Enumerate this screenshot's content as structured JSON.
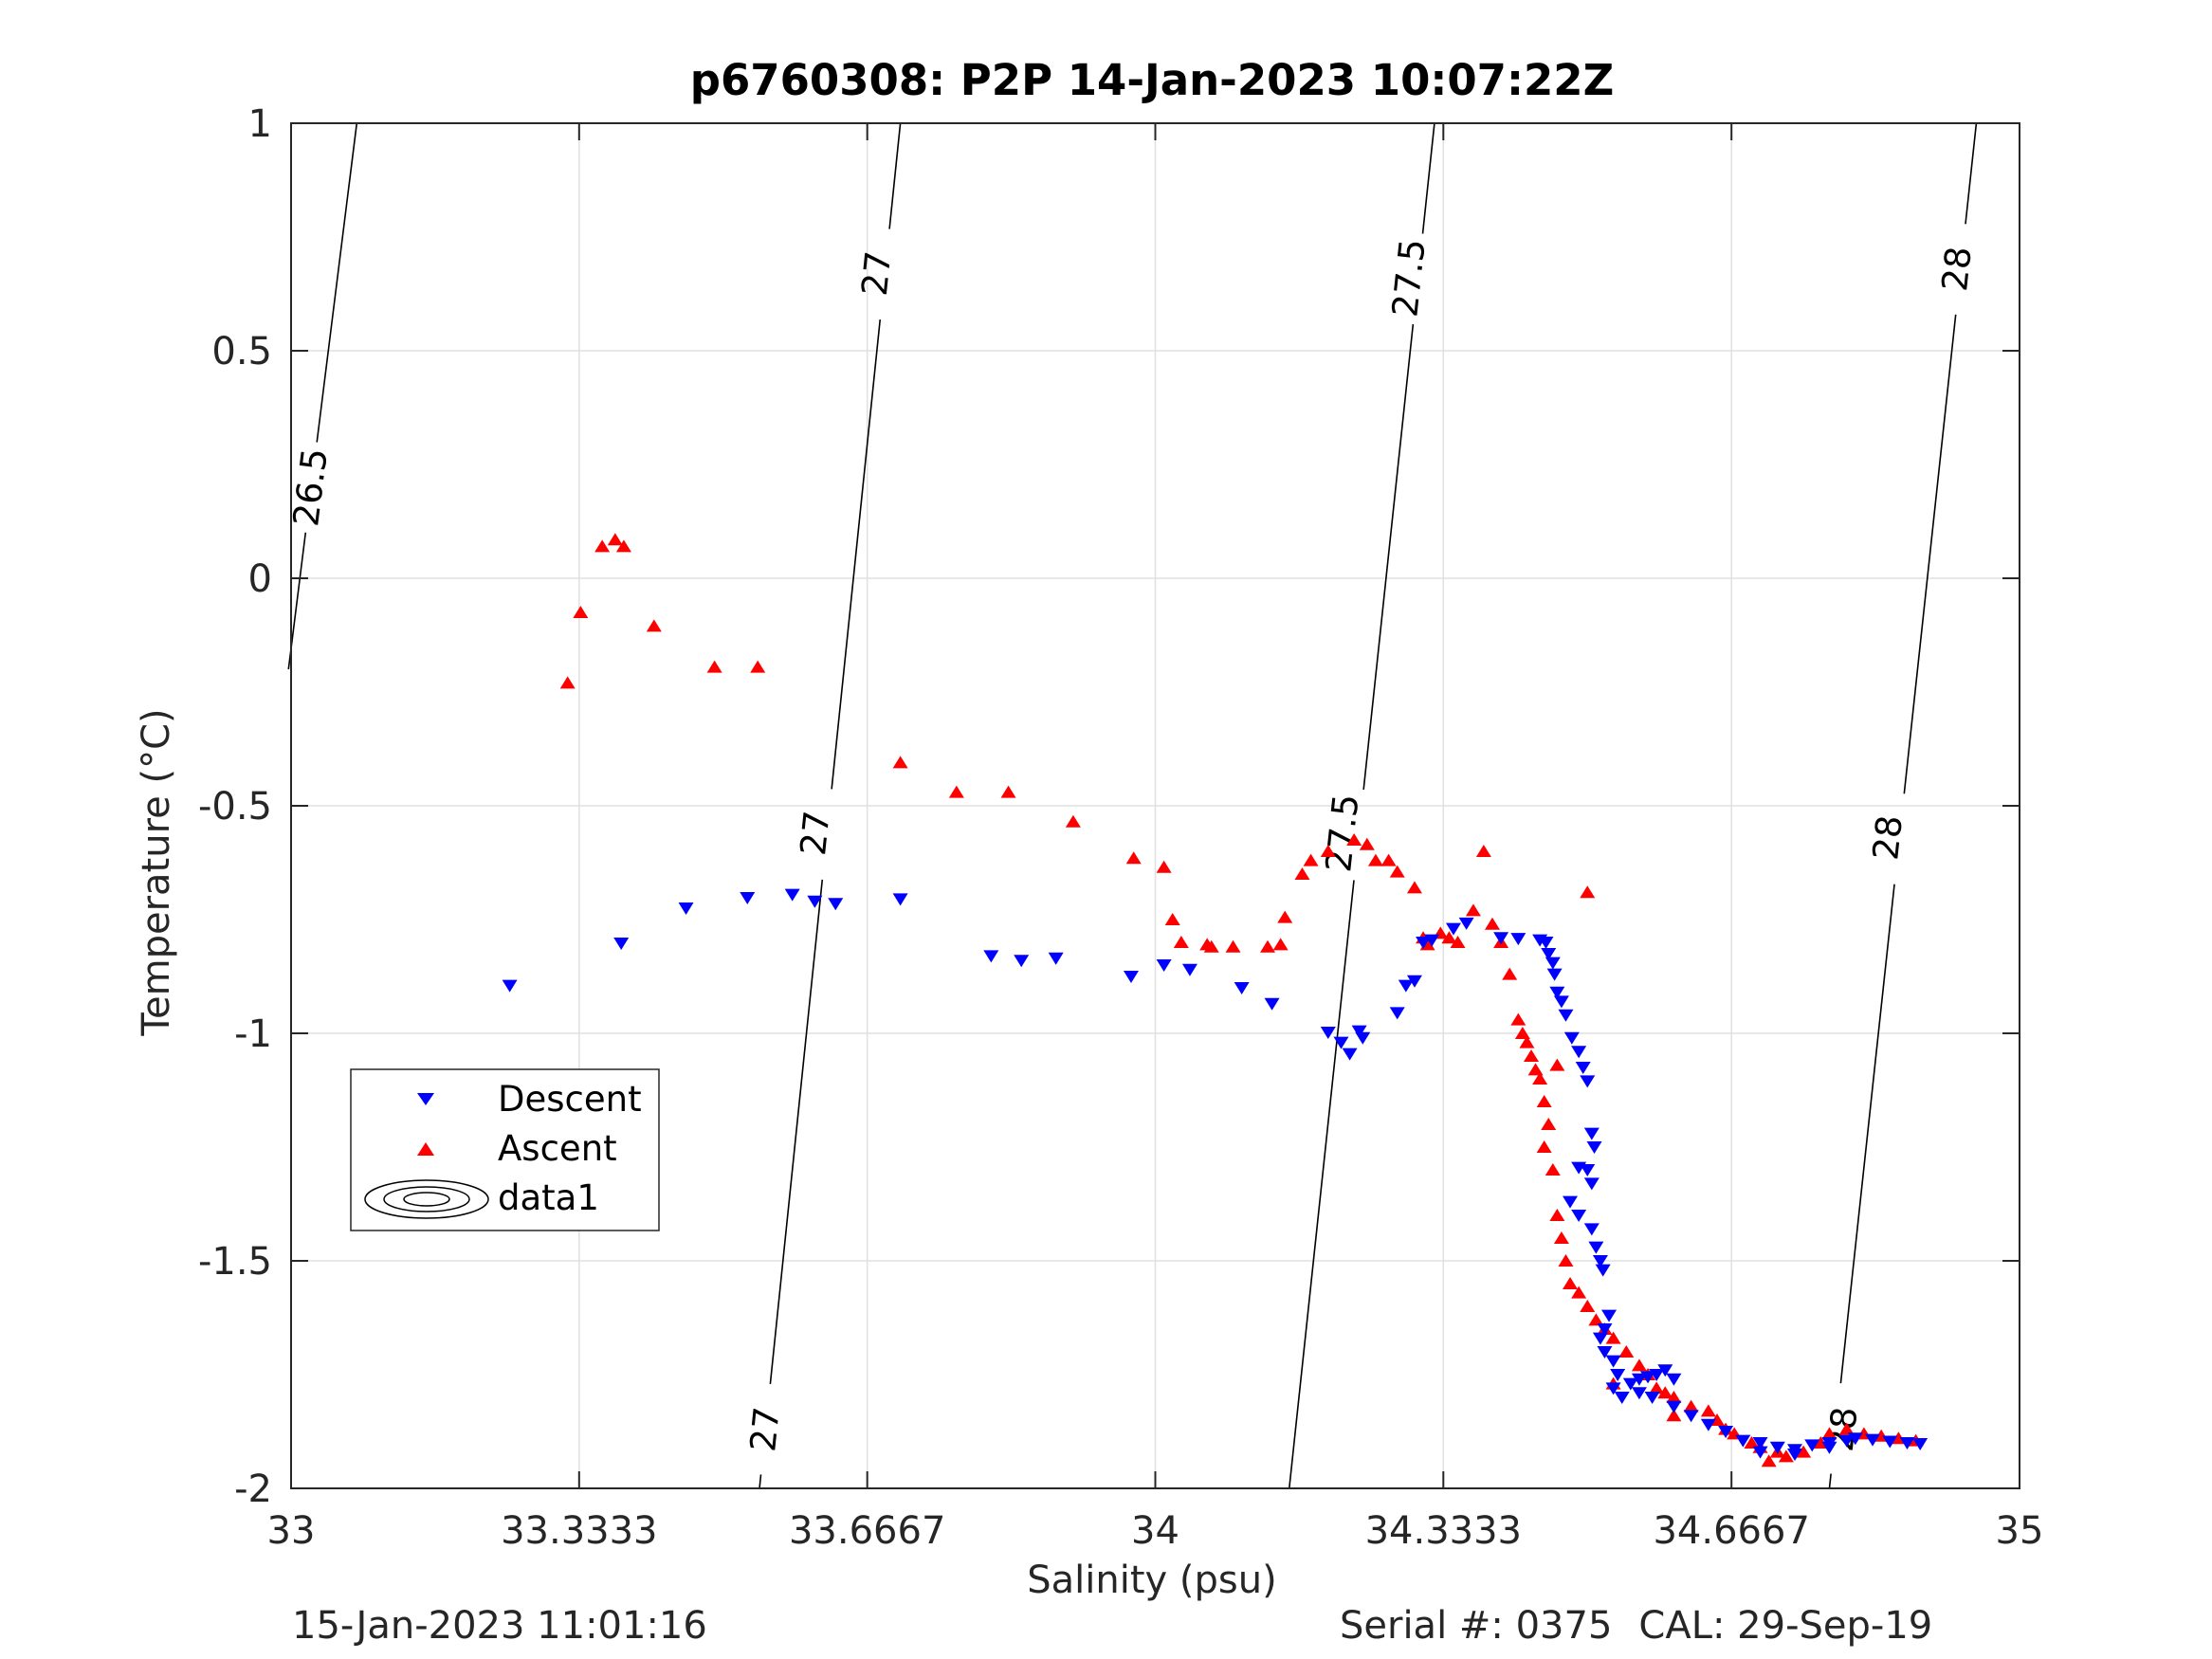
{
  "chart_data": {
    "type": "scatter",
    "title": "p6760308: P2P 14-Jan-2023 10:07:22Z",
    "xlabel": "Salinity (psu)",
    "ylabel": "Temperature (°C)",
    "xlim": [
      33,
      35
    ],
    "ylim": [
      -2,
      1
    ],
    "xticks": [
      33,
      33.3333,
      33.6667,
      34,
      34.3333,
      34.6667,
      35
    ],
    "xtick_labels": [
      "33",
      "33.3333",
      "33.6667",
      "34",
      "34.3333",
      "34.6667",
      "35"
    ],
    "yticks": [
      -2,
      -1.5,
      -1,
      -0.5,
      0,
      0.5,
      1
    ],
    "ytick_labels": [
      "-2",
      "-1.5",
      "-1",
      "-0.5",
      "0",
      "0.5",
      "1"
    ],
    "grid": true,
    "legend_position": "lower-left",
    "colors": {
      "descent": "#0000ff",
      "ascent": "#ff0000",
      "contour": "#000000",
      "grid": "#e0e0e0"
    },
    "series": [
      {
        "name": "Descent",
        "marker": "triangle-down",
        "points": [
          [
            33.253,
            -0.895
          ],
          [
            33.382,
            -0.802
          ],
          [
            33.457,
            -0.725
          ],
          [
            33.528,
            -0.702
          ],
          [
            33.58,
            -0.695
          ],
          [
            33.606,
            -0.71
          ],
          [
            33.63,
            -0.715
          ],
          [
            33.705,
            -0.705
          ],
          [
            33.81,
            -0.83
          ],
          [
            33.845,
            -0.84
          ],
          [
            33.885,
            -0.835
          ],
          [
            33.972,
            -0.875
          ],
          [
            34.01,
            -0.85
          ],
          [
            34.04,
            -0.86
          ],
          [
            34.1,
            -0.9
          ],
          [
            34.135,
            -0.935
          ],
          [
            34.2,
            -0.998
          ],
          [
            34.215,
            -1.02
          ],
          [
            34.225,
            -1.045
          ],
          [
            34.24,
            -1.01
          ],
          [
            34.236,
            -0.995
          ],
          [
            34.28,
            -0.955
          ],
          [
            34.29,
            -0.895
          ],
          [
            34.3,
            -0.885
          ],
          [
            34.31,
            -0.8
          ],
          [
            34.32,
            -0.795
          ],
          [
            34.345,
            -0.77
          ],
          [
            34.36,
            -0.758
          ],
          [
            34.4,
            -0.79
          ],
          [
            34.42,
            -0.792
          ],
          [
            34.445,
            -0.795
          ],
          [
            34.452,
            -0.8
          ],
          [
            34.455,
            -0.825
          ],
          [
            34.46,
            -0.845
          ],
          [
            34.462,
            -0.87
          ],
          [
            34.465,
            -0.91
          ],
          [
            34.47,
            -0.93
          ],
          [
            34.475,
            -0.96
          ],
          [
            34.482,
            -1.01
          ],
          [
            34.49,
            -1.04
          ],
          [
            34.495,
            -1.075
          ],
          [
            34.5,
            -1.105
          ],
          [
            34.505,
            -1.22
          ],
          [
            34.508,
            -1.25
          ],
          [
            34.49,
            -1.295
          ],
          [
            34.5,
            -1.3
          ],
          [
            34.505,
            -1.33
          ],
          [
            34.48,
            -1.37
          ],
          [
            34.49,
            -1.4
          ],
          [
            34.505,
            -1.43
          ],
          [
            34.51,
            -1.47
          ],
          [
            34.515,
            -1.5
          ],
          [
            34.518,
            -1.52
          ],
          [
            34.525,
            -1.62
          ],
          [
            34.52,
            -1.65
          ],
          [
            34.515,
            -1.67
          ],
          [
            34.52,
            -1.7
          ],
          [
            34.53,
            -1.72
          ],
          [
            34.535,
            -1.75
          ],
          [
            34.53,
            -1.78
          ],
          [
            34.54,
            -1.8
          ],
          [
            34.55,
            -1.77
          ],
          [
            34.56,
            -1.76
          ],
          [
            34.57,
            -1.755
          ],
          [
            34.58,
            -1.75
          ],
          [
            34.59,
            -1.74
          ],
          [
            34.6,
            -1.76
          ],
          [
            34.56,
            -1.79
          ],
          [
            34.575,
            -1.8
          ],
          [
            34.6,
            -1.82
          ],
          [
            34.62,
            -1.84
          ],
          [
            34.64,
            -1.86
          ],
          [
            34.66,
            -1.875
          ],
          [
            34.68,
            -1.895
          ],
          [
            34.7,
            -1.9
          ],
          [
            34.72,
            -1.91
          ],
          [
            34.74,
            -1.915
          ],
          [
            34.76,
            -1.905
          ],
          [
            34.78,
            -1.9
          ],
          [
            34.8,
            -1.895
          ],
          [
            34.81,
            -1.89
          ],
          [
            34.83,
            -1.893
          ],
          [
            34.85,
            -1.897
          ],
          [
            34.87,
            -1.9
          ],
          [
            34.885,
            -1.902
          ],
          [
            34.78,
            -1.91
          ],
          [
            34.74,
            -1.925
          ],
          [
            34.7,
            -1.92
          ]
        ]
      },
      {
        "name": "Ascent",
        "marker": "triangle-up",
        "points": [
          [
            33.32,
            -0.23
          ],
          [
            33.335,
            -0.075
          ],
          [
            33.36,
            0.07
          ],
          [
            33.375,
            0.085
          ],
          [
            33.385,
            0.07
          ],
          [
            33.42,
            -0.105
          ],
          [
            33.49,
            -0.195
          ],
          [
            33.54,
            -0.195
          ],
          [
            33.705,
            -0.405
          ],
          [
            33.77,
            -0.47
          ],
          [
            33.83,
            -0.47
          ],
          [
            33.905,
            -0.535
          ],
          [
            33.975,
            -0.615
          ],
          [
            34.01,
            -0.635
          ],
          [
            34.02,
            -0.75
          ],
          [
            34.03,
            -0.8
          ],
          [
            34.06,
            -0.805
          ],
          [
            34.065,
            -0.81
          ],
          [
            34.09,
            -0.81
          ],
          [
            34.13,
            -0.81
          ],
          [
            34.145,
            -0.805
          ],
          [
            34.15,
            -0.745
          ],
          [
            34.17,
            -0.65
          ],
          [
            34.18,
            -0.62
          ],
          [
            34.2,
            -0.6
          ],
          [
            34.23,
            -0.575
          ],
          [
            34.245,
            -0.585
          ],
          [
            34.255,
            -0.62
          ],
          [
            34.27,
            -0.62
          ],
          [
            34.28,
            -0.645
          ],
          [
            34.3,
            -0.68
          ],
          [
            34.31,
            -0.79
          ],
          [
            34.315,
            -0.805
          ],
          [
            34.33,
            -0.78
          ],
          [
            34.34,
            -0.79
          ],
          [
            34.35,
            -0.8
          ],
          [
            34.368,
            -0.73
          ],
          [
            34.38,
            -0.6
          ],
          [
            34.39,
            -0.76
          ],
          [
            34.4,
            -0.8
          ],
          [
            34.41,
            -0.87
          ],
          [
            34.42,
            -0.97
          ],
          [
            34.425,
            -1.0
          ],
          [
            34.43,
            -1.02
          ],
          [
            34.435,
            -1.05
          ],
          [
            34.44,
            -1.08
          ],
          [
            34.445,
            -1.1
          ],
          [
            34.45,
            -1.15
          ],
          [
            34.455,
            -1.2
          ],
          [
            34.46,
            -1.3
          ],
          [
            34.465,
            -1.4
          ],
          [
            34.47,
            -1.45
          ],
          [
            34.475,
            -1.5
          ],
          [
            34.48,
            -1.55
          ],
          [
            34.49,
            -1.57
          ],
          [
            34.5,
            -1.6
          ],
          [
            34.51,
            -1.63
          ],
          [
            34.52,
            -1.65
          ],
          [
            34.53,
            -1.67
          ],
          [
            34.545,
            -1.7
          ],
          [
            34.56,
            -1.73
          ],
          [
            34.57,
            -1.75
          ],
          [
            34.58,
            -1.78
          ],
          [
            34.59,
            -1.79
          ],
          [
            34.6,
            -1.8
          ],
          [
            34.62,
            -1.82
          ],
          [
            34.64,
            -1.83
          ],
          [
            34.65,
            -1.85
          ],
          [
            34.66,
            -1.87
          ],
          [
            34.67,
            -1.88
          ],
          [
            34.69,
            -1.9
          ],
          [
            34.7,
            -1.91
          ],
          [
            34.72,
            -1.92
          ],
          [
            34.73,
            -1.93
          ],
          [
            34.75,
            -1.92
          ],
          [
            34.77,
            -1.9
          ],
          [
            34.78,
            -1.88
          ],
          [
            34.8,
            -1.87
          ],
          [
            34.82,
            -1.88
          ],
          [
            34.84,
            -1.885
          ],
          [
            34.86,
            -1.89
          ],
          [
            34.88,
            -1.895
          ],
          [
            34.5,
            -0.69
          ],
          [
            34.465,
            -1.07
          ],
          [
            34.45,
            -1.25
          ],
          [
            34.53,
            -1.77
          ],
          [
            34.6,
            -1.84
          ],
          [
            34.71,
            -1.94
          ]
        ]
      },
      {
        "name": "data1",
        "type": "contour",
        "levels": [
          26.5,
          27,
          27.5,
          28
        ],
        "lines": [
          {
            "level": 26.5,
            "points": [
              [
                32.997,
                -0.2
              ],
              [
                33.076,
                1.0
              ]
            ],
            "labels": [
              [
                33.022,
                0.2
              ]
            ]
          },
          {
            "level": 27,
            "points": [
              [
                33.542,
                -2.0
              ],
              [
                33.705,
                1.0
              ]
            ],
            "labels": [
              [
                33.548,
                -1.87
              ],
              [
                33.606,
                -0.56
              ],
              [
                33.677,
                0.67
              ]
            ]
          },
          {
            "level": 27.5,
            "points": [
              [
                34.155,
                -2.0
              ],
              [
                34.323,
                1.0
              ]
            ],
            "labels": [
              [
                34.216,
                -0.56
              ],
              [
                34.293,
                0.66
              ]
            ]
          },
          {
            "level": 28,
            "points": [
              [
                34.78,
                -2.0
              ],
              [
                34.95,
                1.0
              ]
            ],
            "labels": [
              [
                34.795,
                -1.87
              ],
              [
                34.847,
                -0.57
              ],
              [
                34.927,
                0.68
              ]
            ]
          }
        ]
      }
    ]
  },
  "footer": {
    "timestamp": "15-Jan-2023 11:01:16",
    "serial": "Serial #: 0375",
    "cal": "CAL: 29-Sep-19"
  }
}
